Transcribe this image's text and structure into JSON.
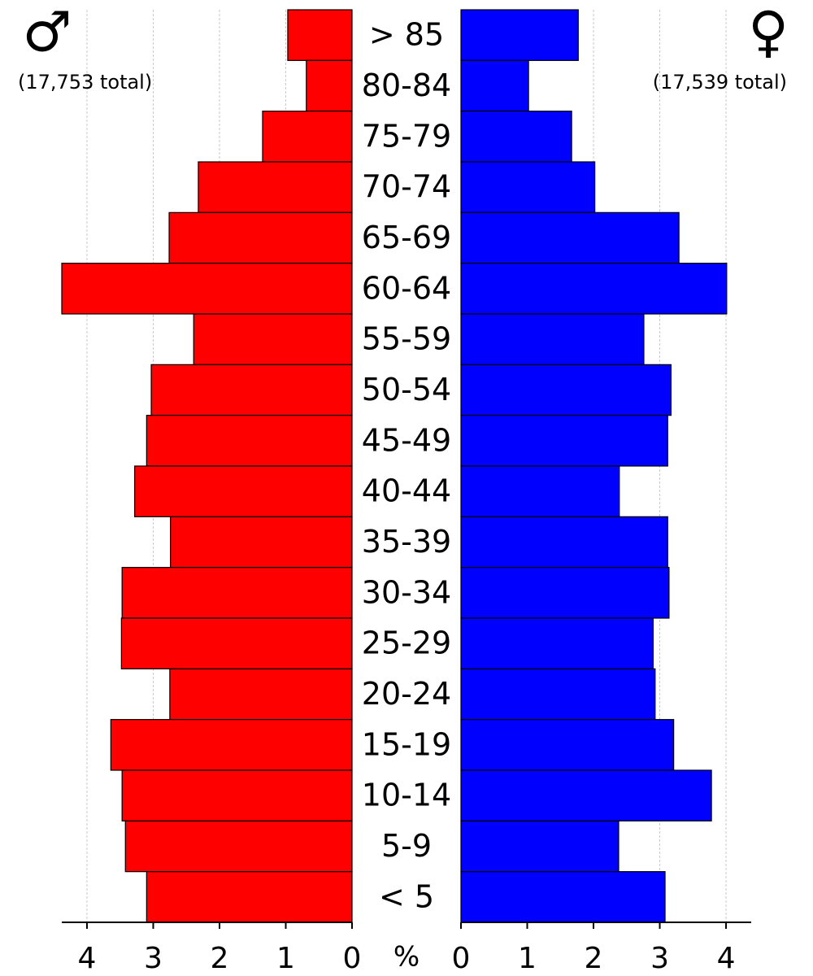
{
  "chart_data": {
    "type": "pyramid",
    "xlabel": "%",
    "categories": [
      "> 85",
      "80-84",
      "75-79",
      "70-74",
      "65-69",
      "60-64",
      "55-59",
      "50-54",
      "45-49",
      "40-44",
      "35-39",
      "30-34",
      "25-29",
      "20-24",
      "15-19",
      "10-14",
      "5-9",
      "< 5"
    ],
    "series": [
      {
        "name": "♂",
        "label": "(17,753 total)",
        "color": "#ff0000",
        "values": [
          0.97,
          0.69,
          1.35,
          2.32,
          2.76,
          4.38,
          2.39,
          3.03,
          3.1,
          3.28,
          2.74,
          3.47,
          3.48,
          2.75,
          3.64,
          3.47,
          3.42,
          3.1
        ]
      },
      {
        "name": "♀",
        "label": "(17,539 total)",
        "color": "#0000ff",
        "values": [
          1.77,
          1.02,
          1.67,
          2.02,
          3.29,
          4.01,
          2.76,
          3.17,
          3.12,
          2.39,
          3.12,
          3.14,
          2.9,
          2.93,
          3.21,
          3.78,
          2.38,
          3.08
        ]
      }
    ],
    "xlim": [
      0,
      4.38
    ],
    "xticks": [
      0,
      1,
      2,
      3,
      4
    ],
    "grid": true
  }
}
